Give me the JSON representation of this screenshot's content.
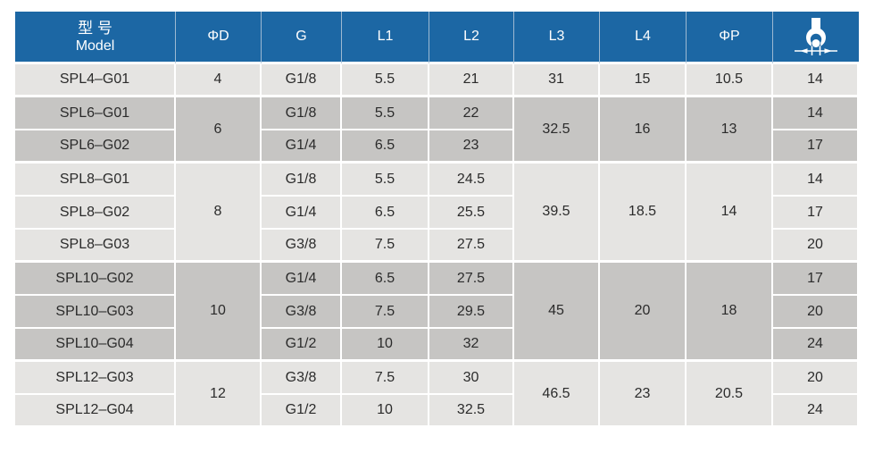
{
  "header": {
    "model_zh": "型 号",
    "model_en": "Model",
    "columns": [
      "ΦD",
      "G",
      "L1",
      "L2",
      "L3",
      "L4",
      "ΦP"
    ],
    "wrench_icon": "wrench-across-flats-icon"
  },
  "colors": {
    "header_bg": "#1c67a4",
    "header_text": "#ffffff",
    "row_light": "#e5e4e2",
    "row_dark": "#c6c5c3",
    "cell_text": "#2b2b2b",
    "grid_line": "#ffffff",
    "header_divider": "#9db9d2"
  },
  "table": {
    "groups": [
      {
        "phi_d": "4",
        "shade": "light",
        "l3": "31",
        "l4": "15",
        "phi_p": "10.5",
        "rows": [
          {
            "model": "SPL4–G01",
            "g": "G1/8",
            "l1": "5.5",
            "l2": "21",
            "wrench": "14"
          }
        ]
      },
      {
        "phi_d": "6",
        "shade": "dark",
        "l3": "32.5",
        "l4": "16",
        "phi_p": "13",
        "rows": [
          {
            "model": "SPL6–G01",
            "g": "G1/8",
            "l1": "5.5",
            "l2": "22",
            "wrench": "14"
          },
          {
            "model": "SPL6–G02",
            "g": "G1/4",
            "l1": "6.5",
            "l2": "23",
            "wrench": "17"
          }
        ]
      },
      {
        "phi_d": "8",
        "shade": "light",
        "l3": "39.5",
        "l4": "18.5",
        "phi_p": "14",
        "rows": [
          {
            "model": "SPL8–G01",
            "g": "G1/8",
            "l1": "5.5",
            "l2": "24.5",
            "wrench": "14"
          },
          {
            "model": "SPL8–G02",
            "g": "G1/4",
            "l1": "6.5",
            "l2": "25.5",
            "wrench": "17"
          },
          {
            "model": "SPL8–G03",
            "g": "G3/8",
            "l1": "7.5",
            "l2": "27.5",
            "wrench": "20"
          }
        ]
      },
      {
        "phi_d": "10",
        "shade": "dark",
        "l3": "45",
        "l4": "20",
        "phi_p": "18",
        "rows": [
          {
            "model": "SPL10–G02",
            "g": "G1/4",
            "l1": "6.5",
            "l2": "27.5",
            "wrench": "17"
          },
          {
            "model": "SPL10–G03",
            "g": "G3/8",
            "l1": "7.5",
            "l2": "29.5",
            "wrench": "20"
          },
          {
            "model": "SPL10–G04",
            "g": "G1/2",
            "l1": "10",
            "l2": "32",
            "wrench": "24"
          }
        ]
      },
      {
        "phi_d": "12",
        "shade": "light",
        "l3": "46.5",
        "l4": "23",
        "phi_p": "20.5",
        "rows": [
          {
            "model": "SPL12–G03",
            "g": "G3/8",
            "l1": "7.5",
            "l2": "30",
            "wrench": "20"
          },
          {
            "model": "SPL12–G04",
            "g": "G1/2",
            "l1": "10",
            "l2": "32.5",
            "wrench": "24"
          }
        ]
      }
    ]
  }
}
